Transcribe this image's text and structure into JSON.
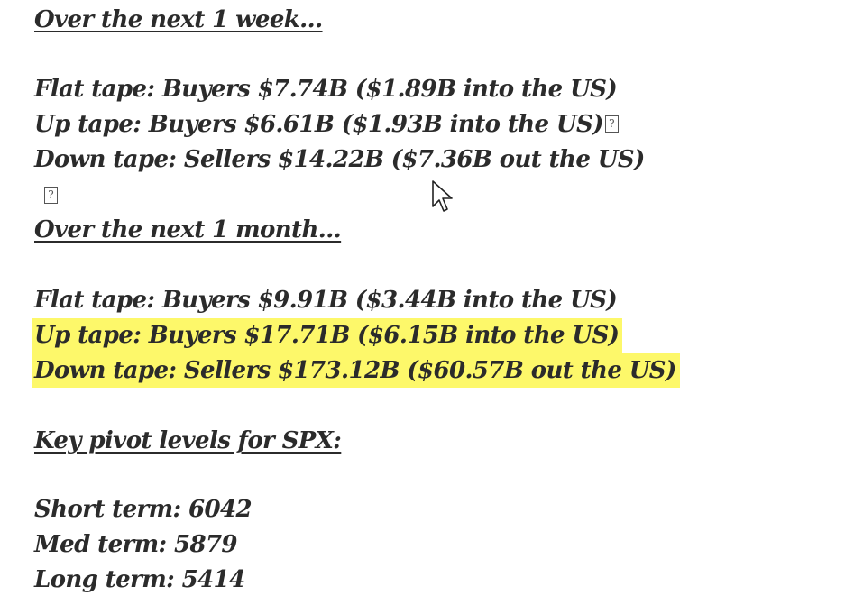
{
  "week": {
    "heading": "Over the next 1 week...",
    "lines": [
      "Flat tape: Buyers $7.74B ($1.89B into the US)",
      "Up tape: Buyers $6.61B ($1.93B into the US)",
      "Down tape: Sellers $14.22B ($7.36B out the US)"
    ],
    "missing_glyph": "?"
  },
  "month": {
    "heading": "Over the next 1 month...",
    "lines": [
      "Flat tape: Buyers $9.91B ($3.44B into the US)",
      "Up tape: Buyers $17.71B ($6.15B into the US)",
      "Down tape: Sellers $173.12B ($60.57B out the US)"
    ],
    "highlight_color": "#fdf86a"
  },
  "pivots": {
    "heading": "Key pivot levels for SPX:",
    "lines": [
      "Short term: 6042",
      "Med term: 5879",
      "Long term: 5414"
    ]
  },
  "icons": {
    "cursor": "mouse-pointer-icon",
    "missing_glyph": "missing-glyph-box-icon"
  }
}
